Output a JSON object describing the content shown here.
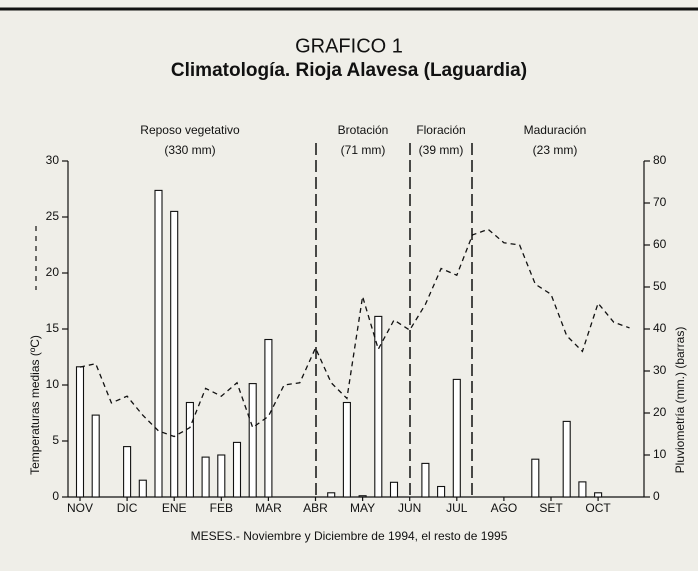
{
  "chart_data": {
    "type": "bar-line",
    "title": "GRAFICO 1",
    "subtitle": "Climatología. Rioja Alavesa (Laguardia)",
    "x_label": "MESES.- Noviembre y Diciembre de 1994, el resto de 1995",
    "y_label": "Temperaturas medias (ºC)",
    "y2_label": "Pluviometría (mm.) (barras)",
    "periods": [
      {
        "label": "Reposo vegetativo",
        "amount": "(330 mm)"
      },
      {
        "label": "Brotación",
        "amount": "(71 mm)"
      },
      {
        "label": "Floración",
        "amount": "(39 mm)"
      },
      {
        "label": "Maduración",
        "amount": "(23 mm)"
      }
    ],
    "categories": [
      "NOV",
      null,
      null,
      "DIC",
      null,
      null,
      "ENE",
      null,
      null,
      "FEB",
      null,
      null,
      "MAR",
      null,
      null,
      "ABR",
      null,
      null,
      "MAY",
      null,
      null,
      "JUN",
      null,
      null,
      "JUL",
      null,
      null,
      "AGO",
      null,
      null,
      "SET",
      null,
      null,
      "OCT",
      null,
      null
    ],
    "series": [
      {
        "type": "bar",
        "axis": "y2",
        "color": "#ffffff",
        "values": [
          31,
          19.5,
          0,
          12,
          4,
          73,
          68,
          22.5,
          9.5,
          10,
          13,
          27,
          37.5,
          0,
          0,
          0,
          1,
          22.5,
          0.3,
          43,
          3.5,
          0,
          8,
          2.5,
          28,
          0,
          0,
          0,
          0,
          9,
          0,
          18,
          3.6,
          1,
          0,
          0
        ]
      },
      {
        "type": "line",
        "axis": "y",
        "color": "#111111",
        "values": [
          11.6,
          11.9,
          8.4,
          9.0,
          7.3,
          5.9,
          5.4,
          6.2,
          9.7,
          9.0,
          10.2,
          6.2,
          7.2,
          10,
          10.2,
          13.3,
          10.2,
          8.8,
          17.9,
          13.2,
          15.8,
          14.9,
          17.2,
          20.4,
          19.8,
          23.4,
          23.9,
          22.7,
          22.5,
          19,
          18.1,
          14.4,
          13.0,
          17.3,
          15.6,
          15.1
        ]
      }
    ],
    "ylim": [
      0,
      30
    ],
    "yticks": [
      0,
      5,
      10,
      15,
      20,
      25,
      30
    ],
    "y2lim": [
      0,
      80
    ],
    "y2ticks": [
      0,
      10,
      20,
      30,
      40,
      50,
      60,
      70,
      80
    ]
  }
}
